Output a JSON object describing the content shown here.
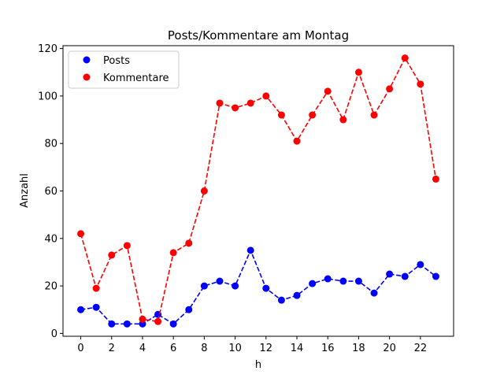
{
  "chart_data": {
    "type": "line",
    "title": "Posts/Kommentare am Montag",
    "xlabel": "h",
    "ylabel": "Anzahl",
    "x": [
      0,
      1,
      2,
      3,
      4,
      5,
      6,
      7,
      8,
      9,
      10,
      11,
      12,
      13,
      14,
      15,
      16,
      17,
      18,
      19,
      20,
      21,
      22,
      23
    ],
    "xlim": [
      -1.15,
      24.15
    ],
    "ylim": [
      -1.2,
      121.2
    ],
    "xticks": [
      "0",
      "2",
      "4",
      "6",
      "8",
      "10",
      "12",
      "14",
      "16",
      "18",
      "20",
      "22"
    ],
    "yticks": [
      "0",
      "20",
      "40",
      "60",
      "80",
      "100",
      "120"
    ],
    "grid": false,
    "legend_position": "upper-left",
    "series": [
      {
        "name": "Posts",
        "color": "#0000ff",
        "values": [
          10,
          11,
          4,
          4,
          4,
          8,
          4,
          10,
          20,
          22,
          20,
          35,
          19,
          14,
          16,
          21,
          23,
          22,
          22,
          17,
          25,
          24,
          29,
          24
        ]
      },
      {
        "name": "Kommentare",
        "color": "#ff0000",
        "values": [
          42,
          19,
          33,
          37,
          6,
          5,
          34,
          38,
          60,
          97,
          95,
          97,
          100,
          92,
          81,
          92,
          102,
          90,
          110,
          92,
          103,
          116,
          105,
          65
        ]
      }
    ]
  }
}
